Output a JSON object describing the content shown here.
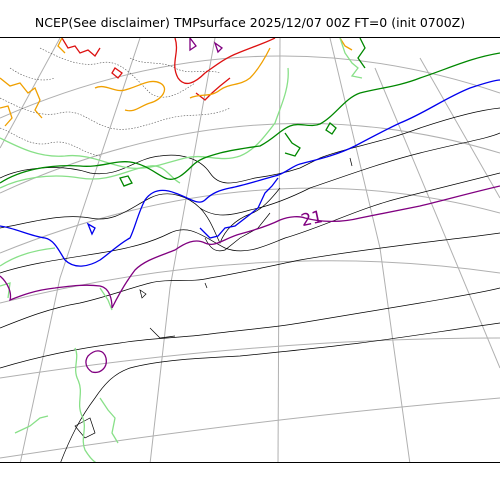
{
  "title": "NCEP(See disclaimer) TMPsurface 2025/12/07 00Z FT=0 (init 0700Z)",
  "contour_label": "21",
  "colors": {
    "grid": "#b0b0b0",
    "coast": "#000000",
    "c_red": "#dd1111",
    "c_orange": "#f0a000",
    "c_lightgreen": "#88e088",
    "c_green": "#008800",
    "c_blue": "#0000ee",
    "c_purple": "#800080",
    "c_gray": "#555555"
  }
}
